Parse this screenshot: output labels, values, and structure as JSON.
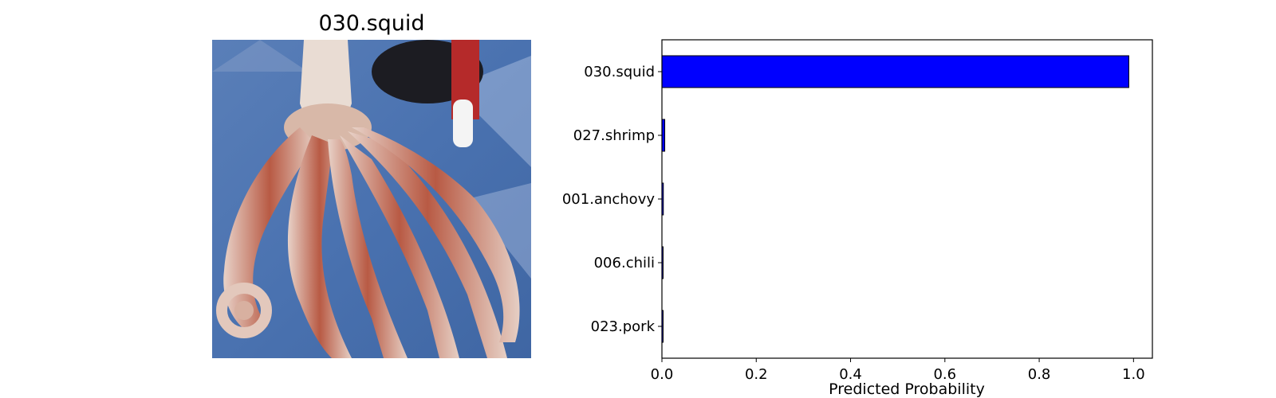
{
  "image_panel": {
    "title": "030.squid"
  },
  "chart_data": {
    "type": "bar",
    "orientation": "horizontal",
    "categories": [
      "030.squid",
      "027.shrimp",
      "001.anchovy",
      "006.chili",
      "023.pork"
    ],
    "values": [
      0.99,
      0.006,
      0.003,
      0.001,
      0.001
    ],
    "xlabel": "Predicted Probability",
    "ylabel": "",
    "xlim": [
      0,
      1.04
    ],
    "xticks": [
      "0.0",
      "0.2",
      "0.4",
      "0.6",
      "0.8",
      "1.0"
    ],
    "bar_color": "#0000ff",
    "edge_color": "#000000",
    "grid": false
  }
}
